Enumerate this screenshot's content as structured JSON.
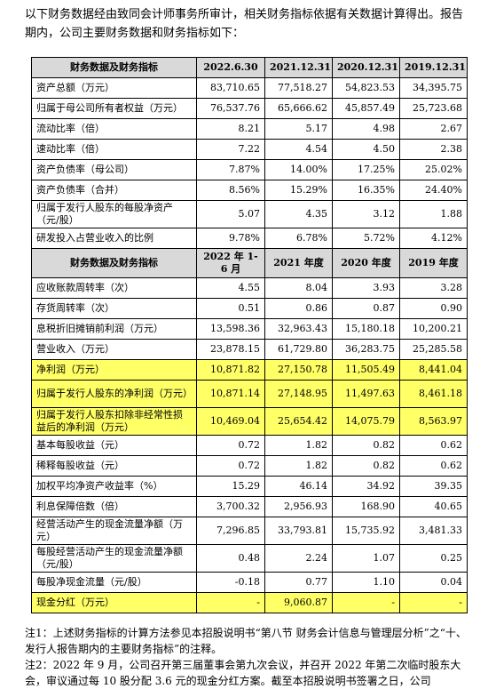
{
  "intro": "以下财务数据经由致同会计师事务所审计，相关财务指标依据有关数据计算得出。报告期内，公司主要财务数据和财务指标如下：",
  "header1": {
    "label": "财务数据及财务指标",
    "cols": [
      "2022.6.30",
      "2021.12.31",
      "2020.12.31",
      "2019.12.31"
    ]
  },
  "rows1": [
    {
      "label": "资产总额（万元）",
      "v": [
        "83,710.65",
        "77,518.27",
        "54,823.53",
        "34,395.75"
      ]
    },
    {
      "label": "归属于母公司所有者权益（万元）",
      "v": [
        "76,537.76",
        "65,666.62",
        "45,857.49",
        "25,723.68"
      ]
    },
    {
      "label": "流动比率（倍）",
      "v": [
        "8.21",
        "5.17",
        "4.98",
        "2.67"
      ]
    },
    {
      "label": "速动比率（倍）",
      "v": [
        "7.22",
        "4.54",
        "4.50",
        "2.38"
      ]
    },
    {
      "label": "资产负债率（母公司）",
      "v": [
        "7.87%",
        "14.00%",
        "17.25%",
        "25.02%"
      ]
    },
    {
      "label": "资产负债率（合并）",
      "v": [
        "8.56%",
        "15.29%",
        "16.35%",
        "24.40%"
      ]
    },
    {
      "label": "归属于发行人股东的每股净资产（元/股）",
      "v": [
        "5.07",
        "4.35",
        "3.12",
        "1.88"
      ]
    },
    {
      "label": "研发投入占营业收入的比例",
      "v": [
        "9.78%",
        "6.78%",
        "5.72%",
        "4.12%"
      ]
    }
  ],
  "header2": {
    "label": "财务数据及财务指标",
    "cols": [
      "2022 年 1-6 月",
      "2021 年度",
      "2020 年度",
      "2019 年度"
    ]
  },
  "rows2": [
    {
      "label": "应收账款周转率（次）",
      "v": [
        "4.55",
        "8.04",
        "3.93",
        "3.28"
      ]
    },
    {
      "label": "存货周转率（次）",
      "v": [
        "0.51",
        "0.86",
        "0.87",
        "0.90"
      ]
    },
    {
      "label": "息税折旧摊销前利润（万元）",
      "v": [
        "13,598.36",
        "32,963.43",
        "15,180.18",
        "10,200.21"
      ]
    },
    {
      "label": "营业收入（万元）",
      "v": [
        "23,878.15",
        "61,729.80",
        "36,283.75",
        "25,285.58"
      ]
    },
    {
      "label": "净利润（万元）",
      "v": [
        "10,871.82",
        "27,150.78",
        "11,505.49",
        "8,441.04"
      ]
    },
    {
      "label": "归属于发行人股东的净利润（万元）",
      "v": [
        "10,871.14",
        "27,148.95",
        "11,497.63",
        "8,461.18"
      ]
    },
    {
      "label": "归属于发行人股东扣除非经常性损益后的净利润（万元）",
      "v": [
        "10,469.04",
        "25,654.42",
        "14,075.79",
        "8,563.97"
      ]
    },
    {
      "label": "基本每股收益（元）",
      "v": [
        "0.72",
        "1.82",
        "0.82",
        "0.62"
      ]
    },
    {
      "label": "稀释每股收益（元）",
      "v": [
        "0.72",
        "1.82",
        "0.82",
        "0.62"
      ]
    },
    {
      "label": "加权平均净资产收益率（%）",
      "v": [
        "15.29",
        "46.14",
        "34.92",
        "39.35"
      ]
    },
    {
      "label": "利息保障倍数（倍）",
      "v": [
        "3,700.32",
        "2,956.93",
        "168.90",
        "40.65"
      ]
    },
    {
      "label": "经营活动产生的现金流量净额（万元）",
      "v": [
        "7,296.85",
        "33,793.81",
        "15,735.92",
        "3,481.33"
      ]
    },
    {
      "label": "每股经营活动产生的现金流量净额（元/股）",
      "v": [
        "0.48",
        "2.24",
        "1.07",
        "0.25"
      ]
    },
    {
      "label": "每股净现金流量（元/股）",
      "v": [
        "-0.18",
        "0.77",
        "1.10",
        "0.04"
      ]
    },
    {
      "label": "现金分红（万元）",
      "v": [
        "-",
        "9,060.87",
        "-",
        "-"
      ]
    }
  ],
  "note1": "注1：上述财务指标的计算方法参见本招股说明书“第八节 财务会计信息与管理层分析”之“十、发行人报告期内的主要财务指标”的注释。",
  "note2": "注2：2022 年 9 月，公司召开第三届董事会第九次会议，并召开 2022 年第二次临时股东大会，审议通过每 10 股分配 3.6 元的现金分红方案。截至本招股说明书签署之日，公司",
  "highlight_color": "#ffff66",
  "header_bg": "#d9d9d9"
}
